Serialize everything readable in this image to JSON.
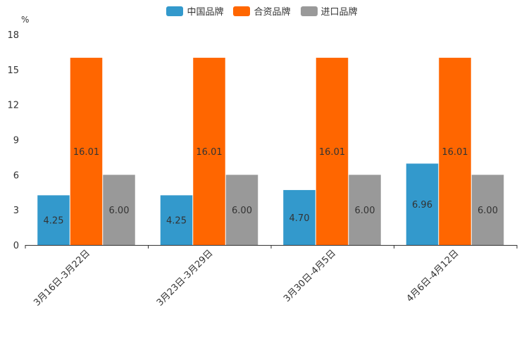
{
  "chart_data": {
    "type": "bar",
    "title": "",
    "xlabel": "",
    "ylabel": "",
    "y_unit": "%",
    "ylim": [
      0,
      18
    ],
    "yticks": [
      0,
      3,
      6,
      9,
      12,
      15,
      18
    ],
    "categories": [
      "3月16日-3月22日",
      "3月23日-3月29日",
      "3月30日-4月5日",
      "4月6日-4月12日"
    ],
    "series": [
      {
        "name": "中国品牌",
        "color": "#3399cc",
        "values": [
          4.25,
          4.25,
          4.7,
          6.96
        ],
        "labels": [
          "4.25",
          "4.25",
          "4.70",
          "6.96"
        ]
      },
      {
        "name": "合资品牌",
        "color": "#ff6600",
        "values": [
          16.01,
          16.01,
          16.01,
          16.01
        ],
        "labels": [
          "16.01",
          "16.01",
          "16.01",
          "16.01"
        ]
      },
      {
        "name": "进口品牌",
        "color": "#999999",
        "values": [
          6.0,
          6.0,
          6.0,
          6.0
        ],
        "labels": [
          "6.00",
          "6.00",
          "6.00",
          "6.00"
        ]
      }
    ],
    "legend_position": "top-center",
    "grid": false
  }
}
